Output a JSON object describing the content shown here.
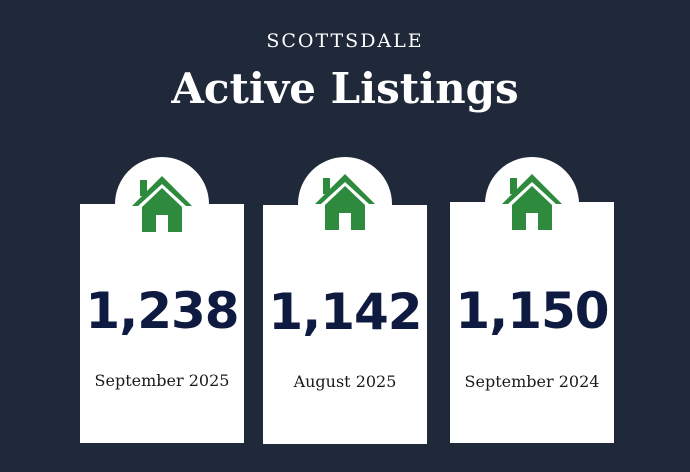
{
  "header": {
    "eyebrow": "SCOTTSDALE",
    "title": "Active Listings"
  },
  "cards": [
    {
      "value": "1,238",
      "label": "September 2025",
      "icon": "house-icon"
    },
    {
      "value": "1,142",
      "label": "August 2025",
      "icon": "house-icon"
    },
    {
      "value": "1,150",
      "label": "September 2024",
      "icon": "house-icon"
    }
  ],
  "colors": {
    "background": "#202939",
    "card": "#ffffff",
    "value_text": "#0e1a40",
    "icon": "#2e8b3e"
  }
}
